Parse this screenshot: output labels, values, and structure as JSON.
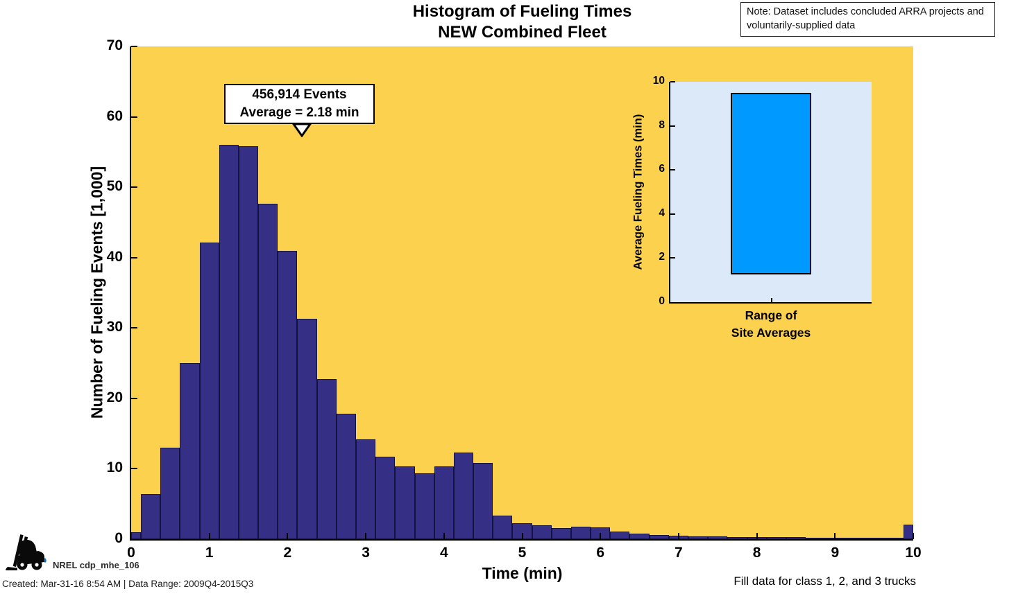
{
  "title": {
    "line1": "Histogram of Fueling Times",
    "line2": "NEW Combined Fleet"
  },
  "note_box": {
    "line1": "Note: Dataset includes concluded ARRA projects and",
    "line2": "voluntarily-supplied data"
  },
  "annotation": {
    "line1": "456,914 Events",
    "line2": "Average = 2.18 min",
    "arrow_time_min": 2.18
  },
  "footer": {
    "logo_icon": "forklift-logo",
    "dataset_id": "NREL cdp_mhe_106",
    "created": "Created: Mar-31-16 8:54 AM | Data Range: 2009Q4-2015Q3",
    "right_note": "Fill data for class 1, 2, and 3 trucks"
  },
  "colors": {
    "figure_bg": "#ffffff",
    "main_plot_bg": "#fbd14d",
    "bar_fill": "#362f86",
    "bar_edge": "#141240",
    "inset_plot_bg": "#dce9f8",
    "inset_bar_fill": "#0099ff",
    "axis_line": "#000000",
    "logo_drop_blue": "#1d6fbd"
  },
  "chart_data": [
    {
      "type": "bar",
      "subtype": "histogram",
      "title": "Histogram of Fueling Times NEW Combined Fleet",
      "xlabel": "Time (min)",
      "ylabel": "Number of Fueling Events [1,000]",
      "xlim": [
        0,
        10
      ],
      "ylim": [
        0,
        70
      ],
      "grid": false,
      "bin_width": 0.25,
      "x_ticks": [
        0,
        1,
        2,
        3,
        4,
        5,
        6,
        7,
        8,
        9,
        10
      ],
      "y_ticks": [
        0,
        10,
        20,
        30,
        40,
        50,
        60,
        70
      ],
      "x": [
        0,
        0.25,
        0.5,
        0.75,
        1,
        1.25,
        1.5,
        1.75,
        2,
        2.25,
        2.5,
        2.75,
        3,
        3.25,
        3.5,
        3.75,
        4,
        4.25,
        4.5,
        4.75,
        5,
        5.25,
        5.5,
        5.75,
        6,
        6.25,
        6.5,
        6.75,
        7,
        7.25,
        7.5,
        7.75,
        8,
        8.25,
        8.5,
        8.75,
        9,
        9.25,
        9.5,
        9.75,
        10
      ],
      "values": [
        1.0,
        6.4,
        13.0,
        25.0,
        42.1,
        56.0,
        55.8,
        47.7,
        41.0,
        31.3,
        22.7,
        17.8,
        14.2,
        11.7,
        10.3,
        9.4,
        10.3,
        12.3,
        10.8,
        3.3,
        2.3,
        2.0,
        1.55,
        1.75,
        1.65,
        1.1,
        0.8,
        0.55,
        0.45,
        0.4,
        0.35,
        0.32,
        0.3,
        0.28,
        0.26,
        0.24,
        0.22,
        0.22,
        0.2,
        0.2,
        2.1
      ],
      "total_events": "456,914",
      "average_min": 2.18
    },
    {
      "type": "bar",
      "subtype": "floating-range",
      "xlabel_line1": "Range of",
      "xlabel_line2": "Site Averages",
      "ylabel": "Average Fueling Times (min)",
      "ylim": [
        0,
        10
      ],
      "y_ticks": [
        0,
        2,
        4,
        6,
        8,
        10
      ],
      "range_low": 1.25,
      "range_high": 9.5
    }
  ]
}
